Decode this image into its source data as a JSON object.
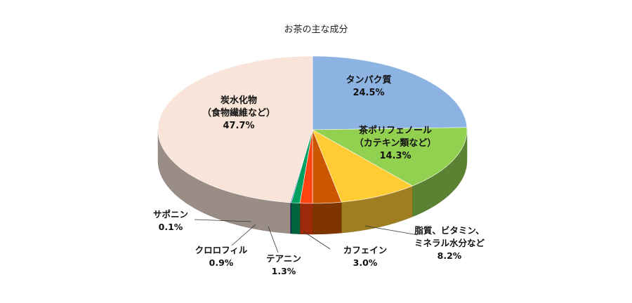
{
  "chart_data": {
    "type": "pie",
    "title": "お茶の主な成分",
    "slices": [
      {
        "name": "タンパク質",
        "value": 24.5,
        "value_label": "24.5%",
        "color": "#8DB3E2"
      },
      {
        "name": "茶ポリフェノール",
        "subname": "（カテキン類など）",
        "value": 14.3,
        "value_label": "14.3%",
        "color": "#92D050"
      },
      {
        "name": "脂質、ビタミン、",
        "subname": "ミネラル水分など",
        "value": 8.2,
        "value_label": "8.2%",
        "color": "#FFCC33"
      },
      {
        "name": "カフェイン",
        "value": 3.0,
        "value_label": "3.0%",
        "color": "#CC5500"
      },
      {
        "name": "テアニン",
        "value": 1.3,
        "value_label": "1.3%",
        "color": "#FF4411"
      },
      {
        "name": "クロロフィル",
        "value": 0.9,
        "value_label": "0.9%",
        "color": "#00A060"
      },
      {
        "name": "サポニン",
        "value": 0.1,
        "value_label": "0.1%",
        "color": "#1F3C99"
      },
      {
        "name": "炭水化物",
        "subname": "（食物繊維など）",
        "value": 47.7,
        "value_label": "47.7%",
        "color": "#F8E4D8"
      }
    ],
    "legend": "none",
    "style": "3d-pie"
  }
}
